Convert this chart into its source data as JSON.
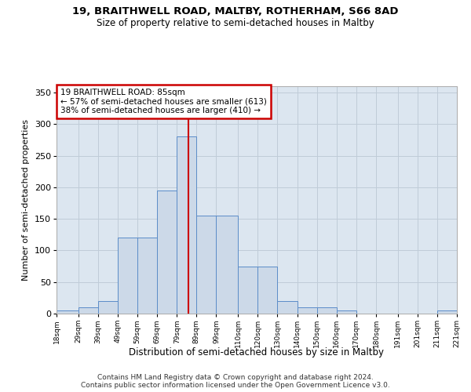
{
  "title_line1": "19, BRAITHWELL ROAD, MALTBY, ROTHERHAM, S66 8AD",
  "title_line2": "Size of property relative to semi-detached houses in Maltby",
  "xlabel": "Distribution of semi-detached houses by size in Maltby",
  "ylabel": "Number of semi-detached properties",
  "footer1": "Contains HM Land Registry data © Crown copyright and database right 2024.",
  "footer2": "Contains public sector information licensed under the Open Government Licence v3.0.",
  "annotation_title": "19 BRAITHWELL ROAD: 85sqm",
  "annotation_line1": "← 57% of semi-detached houses are smaller (613)",
  "annotation_line2": "38% of semi-detached houses are larger (410) →",
  "property_size": 85,
  "bar_color": "#ccd9e8",
  "bar_edge_color": "#5b8cc8",
  "marker_line_color": "#cc0000",
  "annotation_box_edge_color": "#cc0000",
  "background_color": "#ffffff",
  "axes_bg_color": "#dce6f0",
  "grid_color": "#c0ccd8",
  "ylim": [
    0,
    360
  ],
  "yticks": [
    0,
    50,
    100,
    150,
    200,
    250,
    300,
    350
  ],
  "bin_edges": [
    18,
    29,
    39,
    49,
    59,
    69,
    79,
    89,
    99,
    110,
    120,
    130,
    140,
    150,
    160,
    170,
    180,
    191,
    201,
    211,
    221
  ],
  "bin_labels": [
    "18sqm",
    "29sqm",
    "39sqm",
    "49sqm",
    "59sqm",
    "69sqm",
    "79sqm",
    "89sqm",
    "99sqm",
    "110sqm",
    "120sqm",
    "130sqm",
    "140sqm",
    "150sqm",
    "160sqm",
    "170sqm",
    "180sqm",
    "191sqm",
    "201sqm",
    "211sqm",
    "221sqm"
  ],
  "bar_heights": [
    5,
    10,
    20,
    120,
    120,
    195,
    280,
    155,
    155,
    75,
    75,
    20,
    10,
    10,
    5,
    0,
    0,
    0,
    0,
    5
  ]
}
